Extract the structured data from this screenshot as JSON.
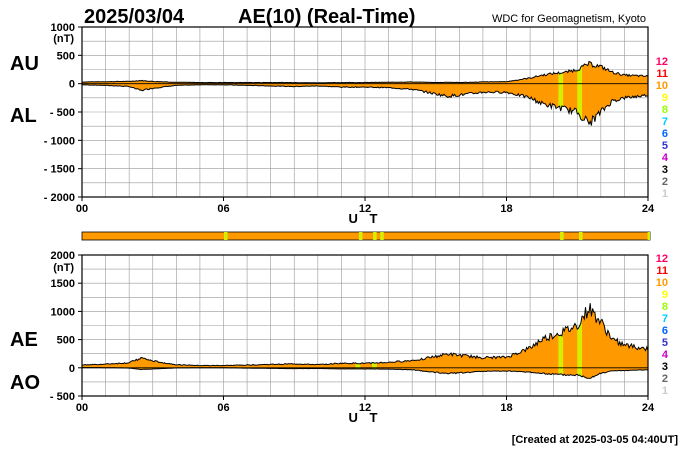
{
  "header": {
    "date": "2025/03/04",
    "title": "AE(10) (Real-Time)",
    "source": "WDC for Geomagnetism, Kyoto"
  },
  "footer": {
    "created": "[Created at 2025-03-05 04:40UT]"
  },
  "station_legend": [
    "12",
    "11",
    "10",
    "9",
    "8",
    "7",
    "6",
    "5",
    "4",
    "3",
    "2",
    "1"
  ],
  "colors": {
    "fill": "#ff9900",
    "highlight": "#d4f000",
    "grid": "#999999",
    "legend": [
      "#ff0066",
      "#ff0000",
      "#ff9900",
      "#ffff00",
      "#99ff00",
      "#00ccff",
      "#0066ff",
      "#3333cc",
      "#cc00cc",
      "#000000",
      "#666666",
      "#cccccc"
    ]
  },
  "chart_data": [
    {
      "type": "area",
      "name": "AU/AL",
      "panel_labels": [
        "AU",
        "AL"
      ],
      "unit": "(nT)",
      "ylim": [
        -2000,
        1000
      ],
      "yticks": [
        1000,
        500,
        0,
        -500,
        -1000,
        -1500,
        -2000
      ],
      "ytick_labels": [
        "1000",
        "500",
        "0",
        "- 500",
        "- 1000",
        "- 1500",
        "- 2000"
      ],
      "xlim": [
        0,
        24
      ],
      "xticks": [
        0,
        6,
        12,
        18,
        24
      ],
      "xtick_labels": [
        "00",
        "06",
        "12",
        "18",
        "24"
      ],
      "xlabel": "U T",
      "grid": true,
      "x": [
        0,
        1,
        2,
        2.5,
        3,
        4,
        5,
        6,
        7,
        8,
        9,
        10,
        11,
        12,
        13,
        14,
        15,
        15.5,
        16,
        17,
        18,
        19,
        19.5,
        20,
        20.5,
        21,
        21.5,
        22,
        22.5,
        23,
        24
      ],
      "series": [
        {
          "name": "AU",
          "values": [
            30,
            35,
            40,
            55,
            40,
            25,
            20,
            20,
            20,
            20,
            20,
            15,
            20,
            20,
            25,
            30,
            20,
            25,
            20,
            30,
            35,
            100,
            150,
            180,
            200,
            250,
            350,
            300,
            200,
            150,
            130
          ]
        },
        {
          "name": "AL",
          "values": [
            -20,
            -30,
            -50,
            -120,
            -80,
            -30,
            -20,
            -20,
            -30,
            -40,
            -50,
            -40,
            -60,
            -60,
            -70,
            -100,
            -180,
            -220,
            -200,
            -150,
            -150,
            -250,
            -350,
            -400,
            -450,
            -500,
            -700,
            -500,
            -300,
            -250,
            -200
          ]
        }
      ],
      "highlights": [
        [
          20.2,
          20.4
        ],
        [
          21.0,
          21.2
        ]
      ]
    },
    {
      "type": "area",
      "name": "AE/AO",
      "panel_labels": [
        "AE",
        "AO"
      ],
      "unit": "(nT)",
      "ylim": [
        -500,
        2000
      ],
      "yticks": [
        2000,
        1500,
        1000,
        500,
        0,
        -500
      ],
      "ytick_labels": [
        "2000",
        "1500",
        "1000",
        "500",
        "0",
        "- 500"
      ],
      "xlim": [
        0,
        24
      ],
      "xticks": [
        0,
        6,
        12,
        18,
        24
      ],
      "xtick_labels": [
        "00",
        "06",
        "12",
        "18",
        "24"
      ],
      "xlabel": "U T",
      "grid": true,
      "x": [
        0,
        1,
        2,
        2.5,
        3,
        4,
        5,
        6,
        7,
        8,
        9,
        10,
        11,
        12,
        13,
        14,
        15,
        15.5,
        16,
        17,
        18,
        19,
        19.5,
        20,
        20.5,
        21,
        21.5,
        22,
        22.5,
        23,
        24
      ],
      "series": [
        {
          "name": "AE",
          "values": [
            50,
            65,
            90,
            175,
            120,
            55,
            40,
            40,
            50,
            60,
            70,
            55,
            80,
            80,
            95,
            130,
            200,
            245,
            220,
            180,
            185,
            350,
            500,
            580,
            650,
            750,
            1050,
            800,
            500,
            400,
            330
          ]
        },
        {
          "name": "AO",
          "values": [
            5,
            2,
            -5,
            -30,
            -20,
            -2,
            0,
            0,
            -5,
            -10,
            -15,
            -12,
            -20,
            -20,
            -22,
            -35,
            -80,
            -100,
            -90,
            -60,
            -57,
            -75,
            -100,
            -110,
            -125,
            -125,
            -175,
            -100,
            -50,
            -50,
            -35
          ]
        }
      ],
      "highlights": [
        [
          11.6,
          11.8
        ],
        [
          12.3,
          12.5
        ],
        [
          20.2,
          20.4
        ],
        [
          21.0,
          21.2
        ]
      ]
    }
  ]
}
